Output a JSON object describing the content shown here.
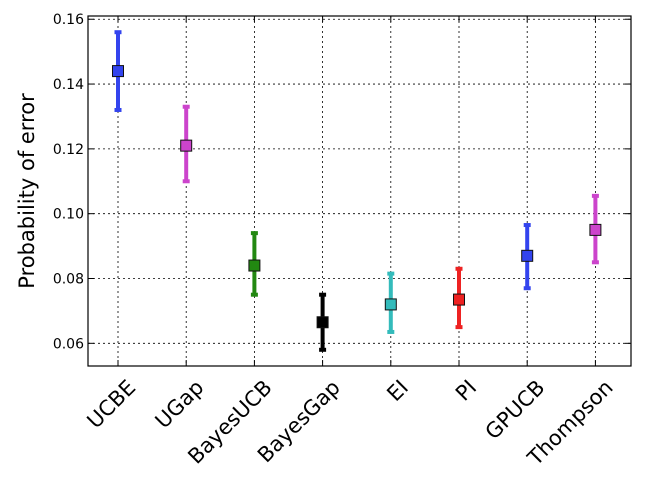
{
  "chart_data": {
    "type": "scatter",
    "title": "",
    "xlabel": "",
    "ylabel": "Probability of error",
    "ylim": [
      0.053,
      0.161
    ],
    "yticks": [
      "0.06",
      "0.08",
      "0.10",
      "0.12",
      "0.14",
      "0.16"
    ],
    "grid": true,
    "categories": [
      "UCBE",
      "UGap",
      "BayesUCB",
      "BayesGap",
      "EI",
      "PI",
      "GPUCB",
      "Thompson"
    ],
    "points": [
      {
        "label": "UCBE",
        "value": 0.144,
        "lower": 0.132,
        "upper": 0.156,
        "color": "#3344ee"
      },
      {
        "label": "UGap",
        "value": 0.121,
        "lower": 0.11,
        "upper": 0.133,
        "color": "#cc44cc"
      },
      {
        "label": "BayesUCB",
        "value": 0.084,
        "lower": 0.075,
        "upper": 0.094,
        "color": "#228811"
      },
      {
        "label": "BayesGap",
        "value": 0.0665,
        "lower": 0.058,
        "upper": 0.075,
        "color": "#000000"
      },
      {
        "label": "EI",
        "value": 0.072,
        "lower": 0.0635,
        "upper": 0.0815,
        "color": "#33bbbb"
      },
      {
        "label": "PI",
        "value": 0.0735,
        "lower": 0.065,
        "upper": 0.083,
        "color": "#ee2222"
      },
      {
        "label": "GPUCB",
        "value": 0.087,
        "lower": 0.077,
        "upper": 0.0965,
        "color": "#3344ee"
      },
      {
        "label": "Thompson",
        "value": 0.095,
        "lower": 0.085,
        "upper": 0.1055,
        "color": "#cc44cc"
      }
    ]
  }
}
